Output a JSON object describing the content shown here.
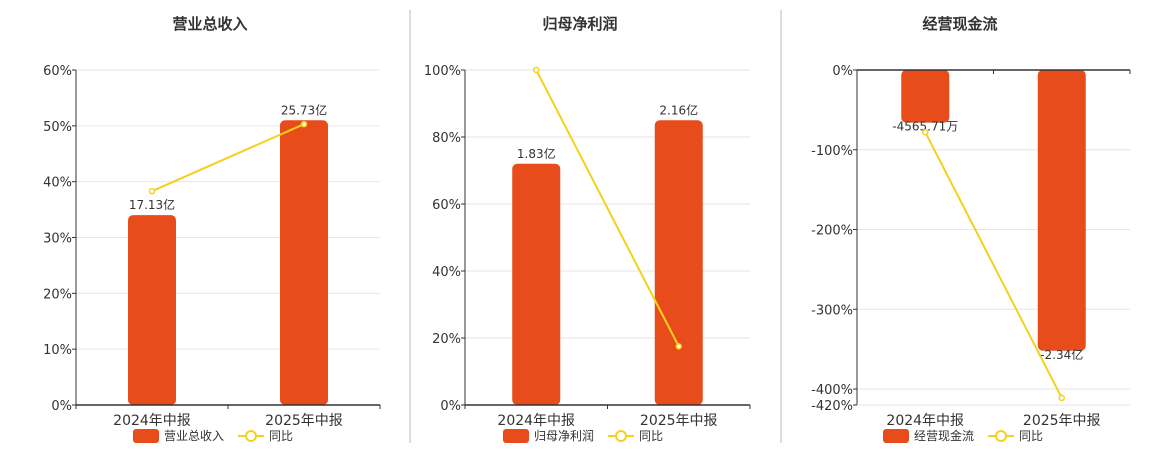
{
  "colors": {
    "bar": "#E84C1A",
    "line": "#F2D21C",
    "grid": "#e6e6e6",
    "axis": "#333333",
    "divider": "#bbbbbb"
  },
  "chart_data": [
    {
      "type": "bar",
      "title": "营业总收入",
      "categories": [
        "2024年中报",
        "2025年中报"
      ],
      "series": [
        {
          "name": "营业总收入",
          "type": "bar",
          "values": [
            34,
            51
          ],
          "labels": [
            "17.13亿",
            "25.73亿"
          ]
        },
        {
          "name": "同比",
          "type": "line",
          "values": [
            38.3,
            50.3
          ]
        }
      ],
      "yticks": [
        0,
        10,
        20,
        30,
        40,
        50,
        60
      ],
      "ytick_labels": [
        "0%",
        "10%",
        "20%",
        "30%",
        "40%",
        "50%",
        "60%"
      ],
      "ylim": [
        0,
        60
      ],
      "legend_position": "bottom",
      "grid": true
    },
    {
      "type": "bar",
      "title": "归母净利润",
      "categories": [
        "2024年中报",
        "2025年中报"
      ],
      "series": [
        {
          "name": "归母净利润",
          "type": "bar",
          "values": [
            72,
            85
          ],
          "labels": [
            "1.83亿",
            "2.16亿"
          ]
        },
        {
          "name": "同比",
          "type": "line",
          "values": [
            100,
            17.5
          ]
        }
      ],
      "yticks": [
        0,
        20,
        40,
        60,
        80,
        100
      ],
      "ytick_labels": [
        "0%",
        "20%",
        "40%",
        "60%",
        "80%",
        "100%"
      ],
      "ylim": [
        0,
        100
      ],
      "legend_position": "bottom",
      "grid": true
    },
    {
      "type": "bar",
      "title": "经营现金流",
      "categories": [
        "2024年中报",
        "2025年中报"
      ],
      "series": [
        {
          "name": "经营现金流",
          "type": "bar",
          "values": [
            -66,
            -352
          ],
          "labels": [
            "-4565.71万",
            "-2.34亿"
          ]
        },
        {
          "name": "同比",
          "type": "line",
          "values": [
            -78,
            -411
          ]
        }
      ],
      "yticks": [
        0,
        -100,
        -200,
        -300,
        -400,
        -420
      ],
      "ytick_labels": [
        "0%",
        "-100%",
        "-200%",
        "-300%",
        "-400%",
        "-420%"
      ],
      "ylim": [
        -420,
        0
      ],
      "legend_position": "bottom",
      "grid": true
    }
  ]
}
